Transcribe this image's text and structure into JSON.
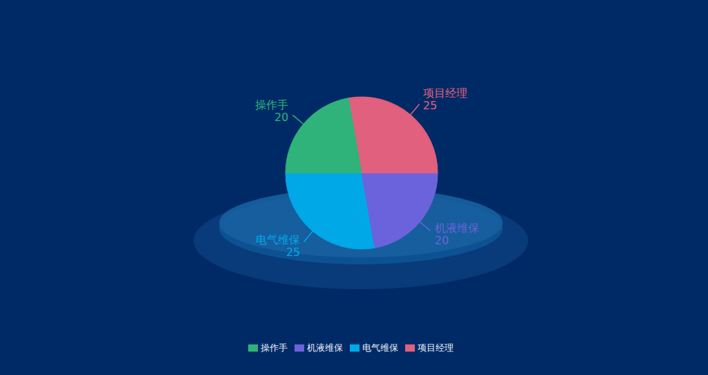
{
  "chart_data": {
    "type": "pie",
    "categories": [
      "电气维保",
      "机液维保",
      "项目经理",
      "操作手"
    ],
    "values": [
      25,
      20,
      25,
      20
    ],
    "colors": [
      "#00a8e8",
      "#6b63dc",
      "#e0607e",
      "#2fb37a"
    ],
    "legend": "bottom",
    "data_labels": true
  }
}
